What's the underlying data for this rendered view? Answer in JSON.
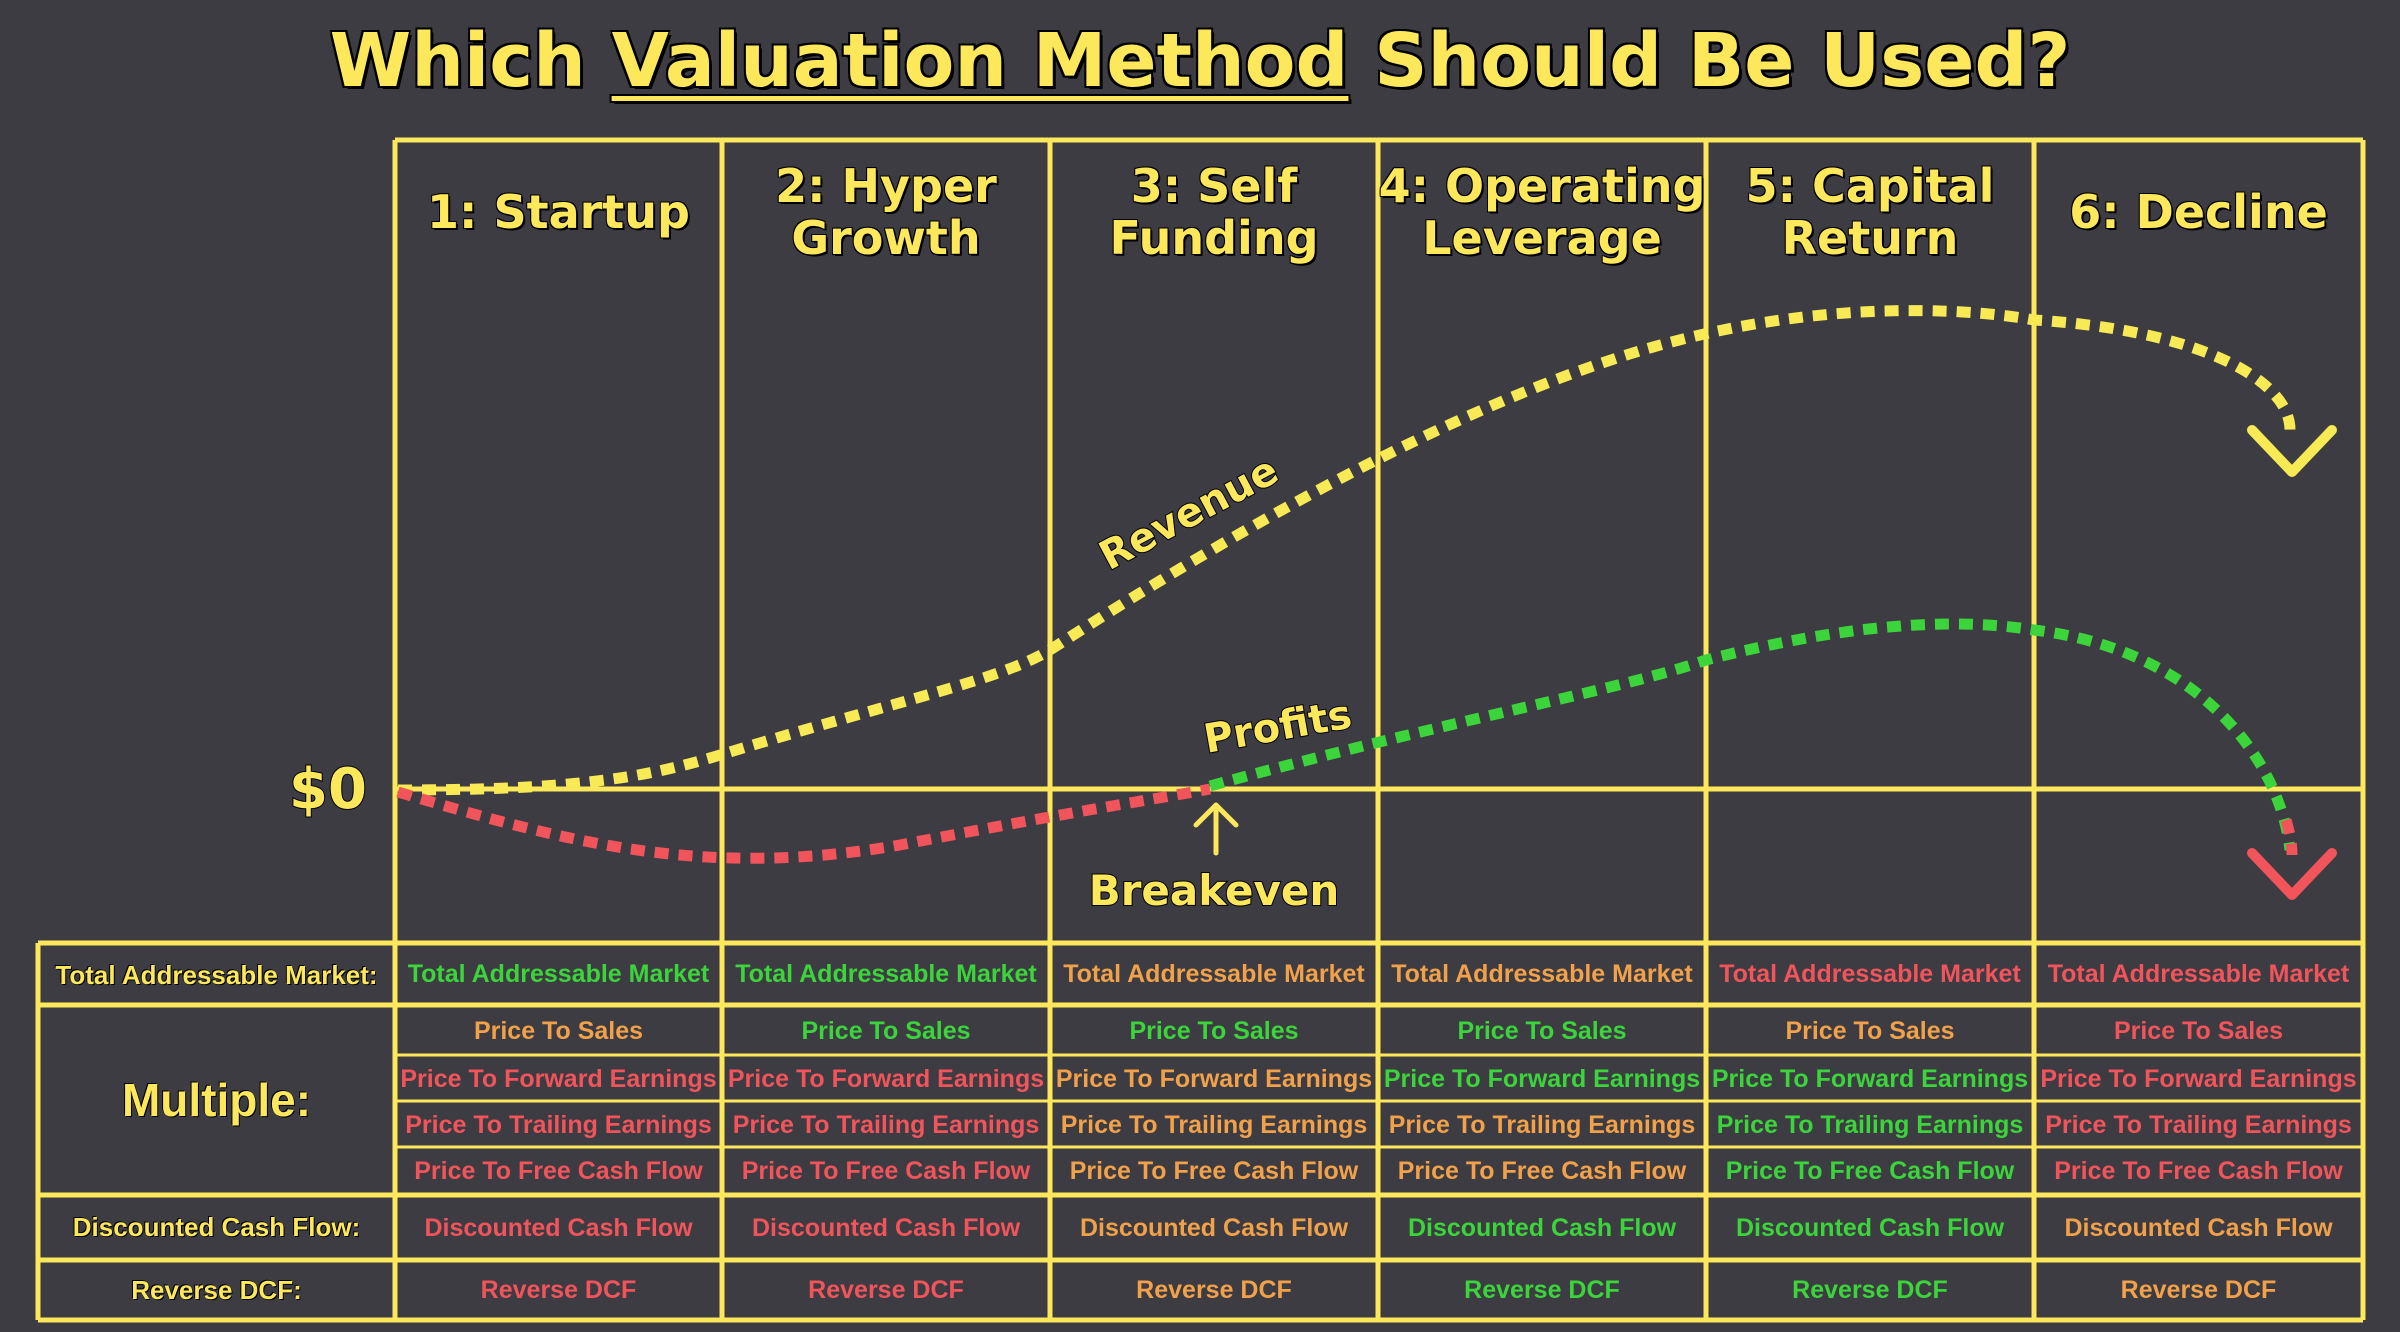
{
  "title": {
    "before": "Which ",
    "underlined": "Valuation Method",
    "after": " Should Be Used?"
  },
  "stages": [
    "1: Startup",
    "2: Hyper Growth",
    "3: Self Funding",
    "4: Operating Leverage",
    "5: Capital Return",
    "6: Decline"
  ],
  "chart": {
    "zero_label": "$0",
    "revenue_label": "Revenue",
    "profits_label": "Profits",
    "breakeven_label": "Breakeven"
  },
  "rows": {
    "tam": {
      "label": "Total Addressable Market:",
      "cells": [
        {
          "text": "Total Addressable Market",
          "status": "green"
        },
        {
          "text": "Total Addressable Market",
          "status": "green"
        },
        {
          "text": "Total Addressable Market",
          "status": "orange"
        },
        {
          "text": "Total Addressable Market",
          "status": "orange"
        },
        {
          "text": "Total Addressable Market",
          "status": "red"
        },
        {
          "text": "Total Addressable Market",
          "status": "red"
        }
      ]
    },
    "multiple": {
      "label": "Multiple:",
      "items": [
        {
          "name": "Price To Sales",
          "status": [
            "orange",
            "green",
            "green",
            "green",
            "orange",
            "red"
          ]
        },
        {
          "name": "Price To Forward Earnings",
          "status": [
            "red",
            "red",
            "orange",
            "green",
            "green",
            "red"
          ]
        },
        {
          "name": "Price To Trailing Earnings",
          "status": [
            "red",
            "red",
            "orange",
            "orange",
            "green",
            "red"
          ]
        },
        {
          "name": "Price To Free Cash Flow",
          "status": [
            "red",
            "red",
            "orange",
            "orange",
            "green",
            "red"
          ]
        }
      ]
    },
    "dcf": {
      "label": "Discounted Cash Flow:",
      "text": "Discounted Cash Flow",
      "status": [
        "red",
        "red",
        "orange",
        "green",
        "green",
        "orange"
      ]
    },
    "rdcf": {
      "label": "Reverse DCF:",
      "text": "Reverse DCF",
      "status": [
        "red",
        "red",
        "orange",
        "green",
        "green",
        "orange"
      ]
    }
  },
  "colors": {
    "background": "#3d3c42",
    "grid": "#fde85c",
    "green": "#3bd43b",
    "orange": "#f0a14a",
    "red": "#f1545b",
    "revenue": "#f7ea55",
    "profit_positive": "#3bd43b",
    "profit_negative": "#f1545b"
  }
}
